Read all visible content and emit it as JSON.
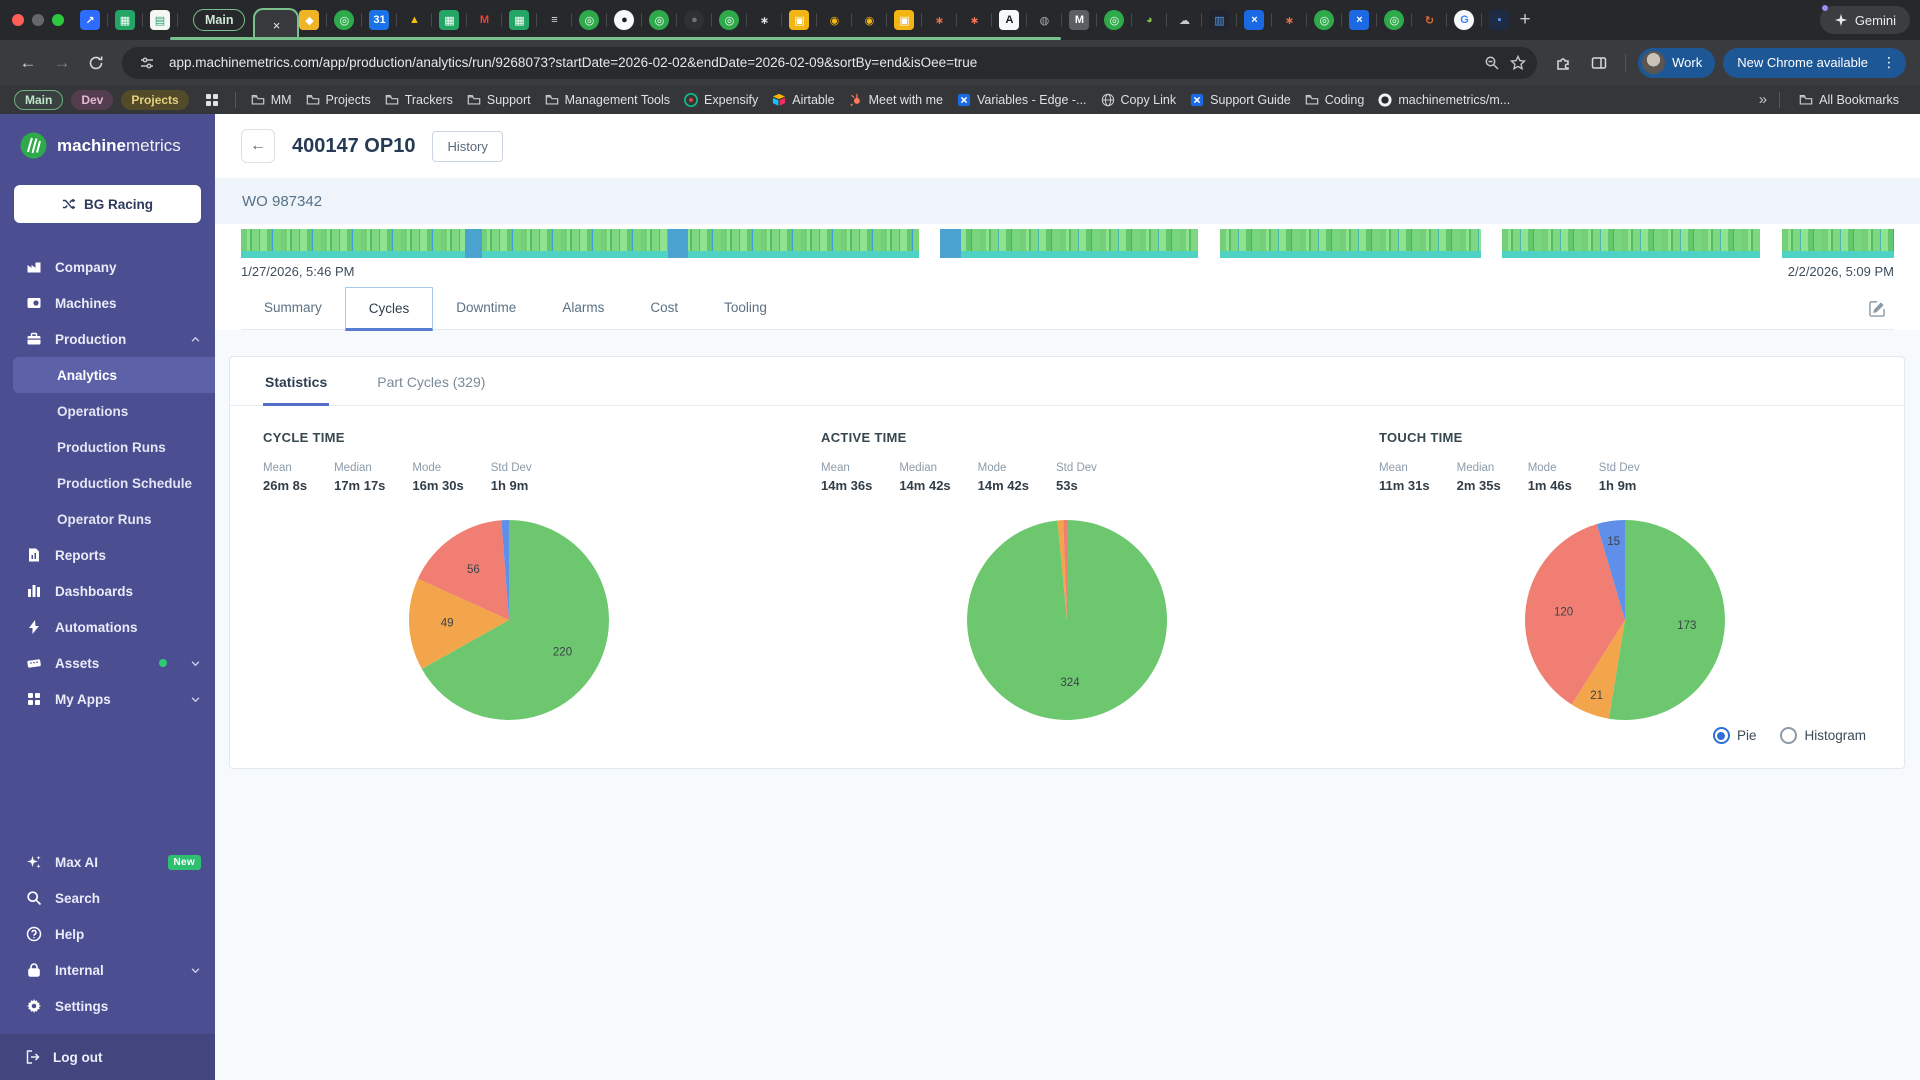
{
  "browser": {
    "tab_group_label": "Main",
    "active_tab_close": "×",
    "new_tab_button": "+",
    "gemini_label": "Gemini",
    "url": "app.machinemetrics.com/app/production/analytics/run/9268073?startDate=2026-02-02&endDate=2026-02-09&sortBy=end&isOee=true",
    "profile_label": "Work",
    "update_label": "New Chrome available",
    "pinned_tabs": [
      {
        "name": "shortcut",
        "bg": "#2e6bff",
        "fg": "#fff",
        "glyph": "↗"
      },
      {
        "name": "sheets",
        "bg": "#23a566",
        "fg": "#fff",
        "glyph": "▦"
      },
      {
        "name": "notes",
        "bg": "#f4f7f4",
        "fg": "#2da06b",
        "glyph": "▤"
      }
    ],
    "favicon_tabs": [
      {
        "name": "box",
        "bg": "#f0b429",
        "fg": "#fff",
        "glyph": "◆"
      },
      {
        "name": "machinemetrics",
        "bg": "#2faa4a",
        "fg": "#fff",
        "glyph": "◎",
        "round": true
      },
      {
        "name": "calendar",
        "bg": "#1a73e8",
        "fg": "#fff",
        "glyph": "31"
      },
      {
        "name": "drive",
        "bg": "none",
        "fg": "#fbbc04",
        "glyph": "▲"
      },
      {
        "name": "sheets",
        "bg": "#23a566",
        "fg": "#fff",
        "glyph": "▦"
      },
      {
        "name": "gmail",
        "bg": "none",
        "fg": "#ea4335",
        "glyph": "M"
      },
      {
        "name": "sheets",
        "bg": "#23a566",
        "fg": "#fff",
        "glyph": "▦"
      },
      {
        "name": "stack",
        "bg": "none",
        "fg": "#dfe1e5",
        "glyph": "≡"
      },
      {
        "name": "machinemetrics",
        "bg": "#2faa4a",
        "fg": "#fff",
        "glyph": "◎",
        "round": true
      },
      {
        "name": "github",
        "bg": "#f6f8fa",
        "fg": "#1b1f23",
        "glyph": "●",
        "round": true
      },
      {
        "name": "machinemetrics",
        "bg": "#2faa4a",
        "fg": "#fff",
        "glyph": "◎",
        "round": true
      },
      {
        "name": "github-dim",
        "bg": "#2e3034",
        "fg": "#6b6e73",
        "glyph": "●",
        "round": true
      },
      {
        "name": "machinemetrics",
        "bg": "#2faa4a",
        "fg": "#fff",
        "glyph": "◎",
        "round": true
      },
      {
        "name": "openai",
        "bg": "none",
        "fg": "#dfe1e5",
        "glyph": "∗"
      },
      {
        "name": "yellow-square",
        "bg": "#f2b514",
        "fg": "#fff",
        "glyph": "▣"
      },
      {
        "name": "yellow-ring",
        "bg": "none",
        "fg": "#f2b514",
        "glyph": "◉"
      },
      {
        "name": "yellow-ring",
        "bg": "none",
        "fg": "#f2b514",
        "glyph": "◉"
      },
      {
        "name": "yellow-square",
        "bg": "#f2b514",
        "fg": "#fff",
        "glyph": "▣"
      },
      {
        "name": "starburst",
        "bg": "none",
        "fg": "#e8734f",
        "glyph": "∗"
      },
      {
        "name": "hubspot",
        "bg": "none",
        "fg": "#ff7a59",
        "glyph": "∗"
      },
      {
        "name": "a-logo",
        "bg": "#f6f8fa",
        "fg": "#16181d",
        "glyph": "A"
      },
      {
        "name": "globe",
        "bg": "none",
        "fg": "#a7aaae",
        "glyph": "◍"
      },
      {
        "name": "m-box",
        "bg": "#5b5e63",
        "fg": "#fff",
        "glyph": "M"
      },
      {
        "name": "machinemetrics",
        "bg": "#2faa4a",
        "fg": "#fff",
        "glyph": "◎",
        "round": true
      },
      {
        "name": "green-ring",
        "bg": "none",
        "fg": "#7ac943",
        "glyph": "◕"
      },
      {
        "name": "cloud",
        "bg": "none",
        "fg": "#c7c9cc",
        "glyph": "☁"
      },
      {
        "name": "panel-blue",
        "bg": "#20242c",
        "fg": "#4f9cf9",
        "glyph": "▥"
      },
      {
        "name": "x-blue",
        "bg": "#1b6ae4",
        "fg": "#fff",
        "glyph": "×"
      },
      {
        "name": "starburst",
        "bg": "none",
        "fg": "#e8734f",
        "glyph": "∗"
      },
      {
        "name": "machinemetrics",
        "bg": "#2faa4a",
        "fg": "#fff",
        "glyph": "◎",
        "round": true
      },
      {
        "name": "x-blue",
        "bg": "#1b6ae4",
        "fg": "#fff",
        "glyph": "×"
      },
      {
        "name": "machinemetrics",
        "bg": "#2faa4a",
        "fg": "#fff",
        "glyph": "◎",
        "round": true
      },
      {
        "name": "refresh-orange",
        "bg": "none",
        "fg": "#e06c3a",
        "glyph": "↻"
      },
      {
        "name": "google",
        "bg": "#f6f8fa",
        "fg": "#4285f4",
        "glyph": "G",
        "round": true
      },
      {
        "name": "blue-box",
        "bg": "#1f2a44",
        "fg": "#4f9cf9",
        "glyph": "▪"
      }
    ],
    "bookmarks": {
      "pills": [
        {
          "label": "Main",
          "style": "green"
        },
        {
          "label": "Dev",
          "style": "pink"
        },
        {
          "label": "Projects",
          "style": "yellow"
        }
      ],
      "items": [
        {
          "icon": "folder",
          "label": "MM"
        },
        {
          "icon": "folder",
          "label": "Projects"
        },
        {
          "icon": "folder",
          "label": "Trackers"
        },
        {
          "icon": "folder",
          "label": "Support"
        },
        {
          "icon": "folder",
          "label": "Management Tools"
        },
        {
          "icon": "expensify",
          "label": "Expensify"
        },
        {
          "icon": "airtable",
          "label": "Airtable"
        },
        {
          "icon": "hubspot",
          "label": "Meet with me"
        },
        {
          "icon": "x-blue",
          "label": "Variables - Edge -..."
        },
        {
          "icon": "globe",
          "label": "Copy Link"
        },
        {
          "icon": "x-blue",
          "label": "Support Guide"
        },
        {
          "icon": "folder",
          "label": "Coding"
        },
        {
          "icon": "github",
          "label": "machinemetrics/m..."
        }
      ],
      "overflow": "»",
      "all_bookmarks": "All Bookmarks"
    }
  },
  "sidebar": {
    "brand_bold": "machine",
    "brand_light": "metrics",
    "org_button": "BG Racing",
    "nav": [
      {
        "icon": "company",
        "label": "Company"
      },
      {
        "icon": "machines",
        "label": "Machines"
      },
      {
        "icon": "production",
        "label": "Production",
        "chevron": "up",
        "children": [
          {
            "label": "Analytics",
            "active": true
          },
          {
            "label": "Operations"
          },
          {
            "label": "Production Runs"
          },
          {
            "label": "Production Schedule"
          },
          {
            "label": "Operator Runs"
          }
        ]
      },
      {
        "icon": "reports",
        "label": "Reports"
      },
      {
        "icon": "dashboards",
        "label": "Dashboards"
      },
      {
        "icon": "automations",
        "label": "Automations"
      },
      {
        "icon": "assets",
        "label": "Assets",
        "dot": true,
        "chevron": "down"
      },
      {
        "icon": "myapps",
        "label": "My Apps",
        "chevron": "down"
      }
    ],
    "footer": [
      {
        "icon": "sparkle",
        "label": "Max AI",
        "badge": "New"
      },
      {
        "icon": "search",
        "label": "Search"
      },
      {
        "icon": "help",
        "label": "Help"
      },
      {
        "icon": "lock",
        "label": "Internal",
        "chevron": "down"
      },
      {
        "icon": "gear",
        "label": "Settings"
      }
    ],
    "logout": "Log out"
  },
  "main": {
    "back_glyph": "←",
    "title": "400147 OP10",
    "history_button": "History",
    "work_order": "WO 987342",
    "timeline": {
      "start_label": "1/27/2026, 5:46 PM",
      "end_label": "2/2/2026, 5:09 PM",
      "segments": [
        41,
        15.6,
        15.8,
        15.6,
        6.8
      ]
    },
    "tabs": [
      "Summary",
      "Cycles",
      "Downtime",
      "Alarms",
      "Cost",
      "Tooling"
    ],
    "active_tab": "Cycles",
    "card": {
      "tabs": [
        {
          "label": "Statistics",
          "active": true
        },
        {
          "label": "Part Cycles (329)",
          "active": false
        }
      ],
      "toggle": {
        "options": [
          "Pie",
          "Histogram"
        ],
        "selected": "Pie"
      }
    }
  },
  "palette": {
    "green": "#6cc76f",
    "orange": "#f2a54a",
    "red": "#f07e72",
    "blue": "#5f8fe8"
  },
  "chart_data": [
    {
      "type": "pie",
      "title": "CYCLE TIME",
      "stats": [
        {
          "label": "Mean",
          "value": "26m 8s"
        },
        {
          "label": "Median",
          "value": "17m 17s"
        },
        {
          "label": "Mode",
          "value": "16m 30s"
        },
        {
          "label": "Std Dev",
          "value": "1h 9m"
        }
      ],
      "slices": [
        {
          "value": 220,
          "color": "green",
          "label": "220"
        },
        {
          "value": 49,
          "color": "orange",
          "label": "49"
        },
        {
          "value": 56,
          "color": "red",
          "label": "56"
        },
        {
          "value": 4,
          "color": "blue"
        }
      ]
    },
    {
      "type": "pie",
      "title": "ACTIVE TIME",
      "stats": [
        {
          "label": "Mean",
          "value": "14m 36s"
        },
        {
          "label": "Median",
          "value": "14m 42s"
        },
        {
          "label": "Mode",
          "value": "14m 42s"
        },
        {
          "label": "Std Dev",
          "value": "53s"
        }
      ],
      "slices": [
        {
          "value": 324,
          "color": "green",
          "label": "324"
        },
        {
          "value": 3,
          "color": "orange"
        },
        {
          "value": 2,
          "color": "red"
        }
      ]
    },
    {
      "type": "pie",
      "title": "TOUCH TIME",
      "stats": [
        {
          "label": "Mean",
          "value": "11m 31s"
        },
        {
          "label": "Median",
          "value": "2m 35s"
        },
        {
          "label": "Mode",
          "value": "1m 46s"
        },
        {
          "label": "Std Dev",
          "value": "1h 9m"
        }
      ],
      "slices": [
        {
          "value": 173,
          "color": "green",
          "label": "173"
        },
        {
          "value": 21,
          "color": "orange",
          "label": "21"
        },
        {
          "value": 120,
          "color": "red",
          "label": "120"
        },
        {
          "value": 15,
          "color": "blue",
          "label": "15"
        }
      ]
    }
  ]
}
